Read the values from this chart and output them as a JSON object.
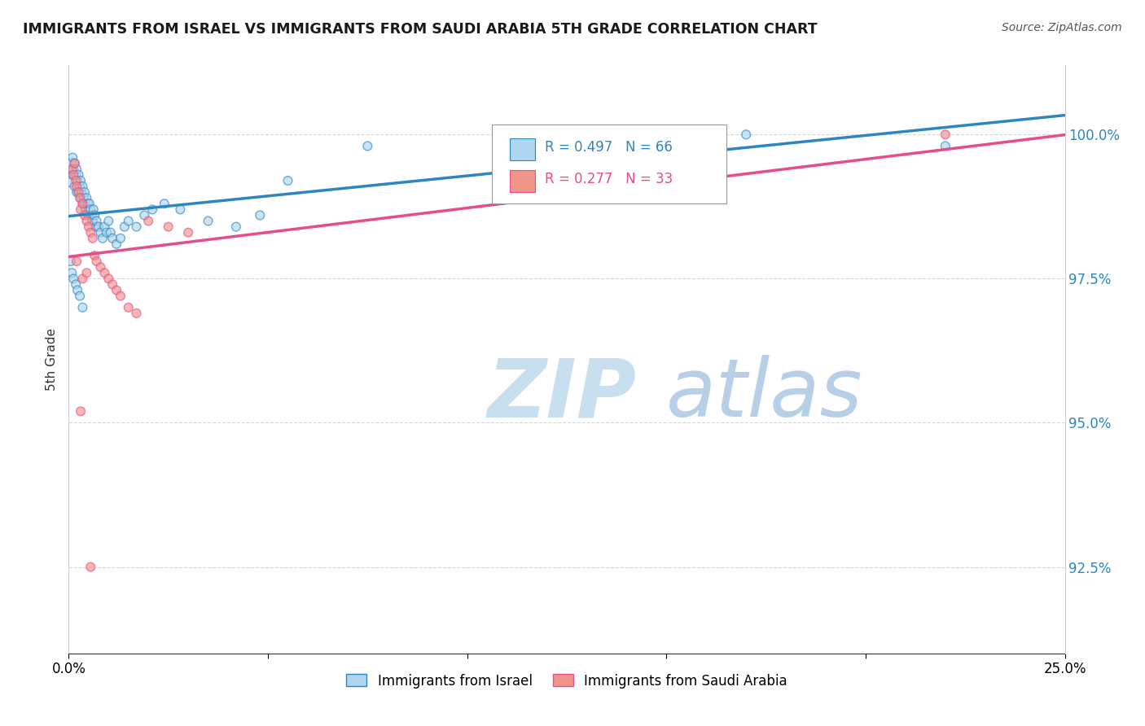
{
  "title": "IMMIGRANTS FROM ISRAEL VS IMMIGRANTS FROM SAUDI ARABIA 5TH GRADE CORRELATION CHART",
  "source": "Source: ZipAtlas.com",
  "ylabel": "5th Grade",
  "y_min": 91.0,
  "y_max": 101.2,
  "x_min": 0.0,
  "x_max": 25.0,
  "legend_israel": "Immigrants from Israel",
  "legend_saudi": "Immigrants from Saudi Arabia",
  "R_israel": 0.497,
  "N_israel": 66,
  "R_saudi": 0.277,
  "N_saudi": 33,
  "color_israel": "#aed6f1",
  "color_saudi": "#f1948a",
  "line_color_israel": "#2e86c1",
  "line_color_saudi": "#e74c8b",
  "watermark_zip": "#c8dff0",
  "watermark_atlas": "#b0c4de",
  "background_color": "#ffffff",
  "grid_color": "#cccccc",
  "ytick_vals": [
    92.5,
    95.0,
    97.5,
    100.0
  ],
  "israel_x": [
    0.05,
    0.08,
    0.1,
    0.1,
    0.12,
    0.15,
    0.15,
    0.18,
    0.2,
    0.2,
    0.22,
    0.25,
    0.25,
    0.28,
    0.3,
    0.3,
    0.32,
    0.35,
    0.35,
    0.38,
    0.4,
    0.4,
    0.42,
    0.45,
    0.48,
    0.5,
    0.52,
    0.55,
    0.58,
    0.6,
    0.62,
    0.65,
    0.68,
    0.7,
    0.75,
    0.8,
    0.85,
    0.9,
    0.95,
    1.0,
    1.05,
    1.1,
    1.2,
    1.3,
    1.4,
    1.5,
    1.7,
    1.9,
    2.1,
    2.4,
    2.8,
    3.5,
    4.2,
    0.05,
    0.08,
    0.12,
    0.18,
    0.22,
    0.28,
    0.35,
    7.5,
    11.0,
    17.0,
    22.0,
    5.5,
    4.8
  ],
  "israel_y": [
    99.2,
    99.5,
    99.6,
    99.3,
    99.4,
    99.5,
    99.1,
    99.3,
    99.4,
    99.0,
    99.2,
    99.3,
    99.0,
    99.1,
    99.2,
    98.9,
    99.0,
    98.8,
    99.1,
    98.9,
    98.8,
    99.0,
    98.7,
    98.9,
    98.8,
    98.6,
    98.8,
    98.7,
    98.6,
    98.5,
    98.7,
    98.6,
    98.4,
    98.5,
    98.4,
    98.3,
    98.2,
    98.4,
    98.3,
    98.5,
    98.3,
    98.2,
    98.1,
    98.2,
    98.4,
    98.5,
    98.4,
    98.6,
    98.7,
    98.8,
    98.7,
    98.5,
    98.4,
    97.8,
    97.6,
    97.5,
    97.4,
    97.3,
    97.2,
    97.0,
    99.8,
    99.9,
    100.0,
    99.8,
    99.2,
    98.6
  ],
  "israel_size": [
    120,
    80,
    60,
    60,
    60,
    60,
    60,
    60,
    60,
    60,
    60,
    60,
    60,
    60,
    60,
    60,
    60,
    60,
    60,
    60,
    60,
    60,
    60,
    60,
    60,
    60,
    60,
    60,
    60,
    60,
    60,
    60,
    60,
    60,
    60,
    60,
    60,
    60,
    60,
    60,
    60,
    60,
    60,
    60,
    60,
    60,
    60,
    60,
    60,
    60,
    60,
    60,
    60,
    60,
    60,
    60,
    60,
    60,
    60,
    60,
    60,
    60,
    60,
    60,
    60,
    60
  ],
  "saudi_x": [
    0.08,
    0.12,
    0.15,
    0.18,
    0.2,
    0.25,
    0.28,
    0.3,
    0.35,
    0.4,
    0.45,
    0.5,
    0.55,
    0.6,
    0.65,
    0.7,
    0.8,
    0.9,
    1.0,
    1.1,
    1.2,
    1.3,
    1.5,
    1.7,
    2.0,
    2.5,
    3.0,
    0.3,
    0.2,
    0.35,
    22.0,
    0.45,
    0.55
  ],
  "saudi_y": [
    99.4,
    99.3,
    99.5,
    99.2,
    99.1,
    99.0,
    98.9,
    98.7,
    98.8,
    98.6,
    98.5,
    98.4,
    98.3,
    98.2,
    97.9,
    97.8,
    97.7,
    97.6,
    97.5,
    97.4,
    97.3,
    97.2,
    97.0,
    96.9,
    98.5,
    98.4,
    98.3,
    95.2,
    97.8,
    97.5,
    100.0,
    97.6,
    92.5
  ],
  "saudi_size": [
    60,
    60,
    60,
    60,
    60,
    60,
    60,
    60,
    60,
    60,
    60,
    60,
    60,
    60,
    60,
    60,
    60,
    60,
    60,
    60,
    60,
    60,
    60,
    60,
    60,
    60,
    60,
    60,
    60,
    60,
    60,
    60,
    60
  ]
}
